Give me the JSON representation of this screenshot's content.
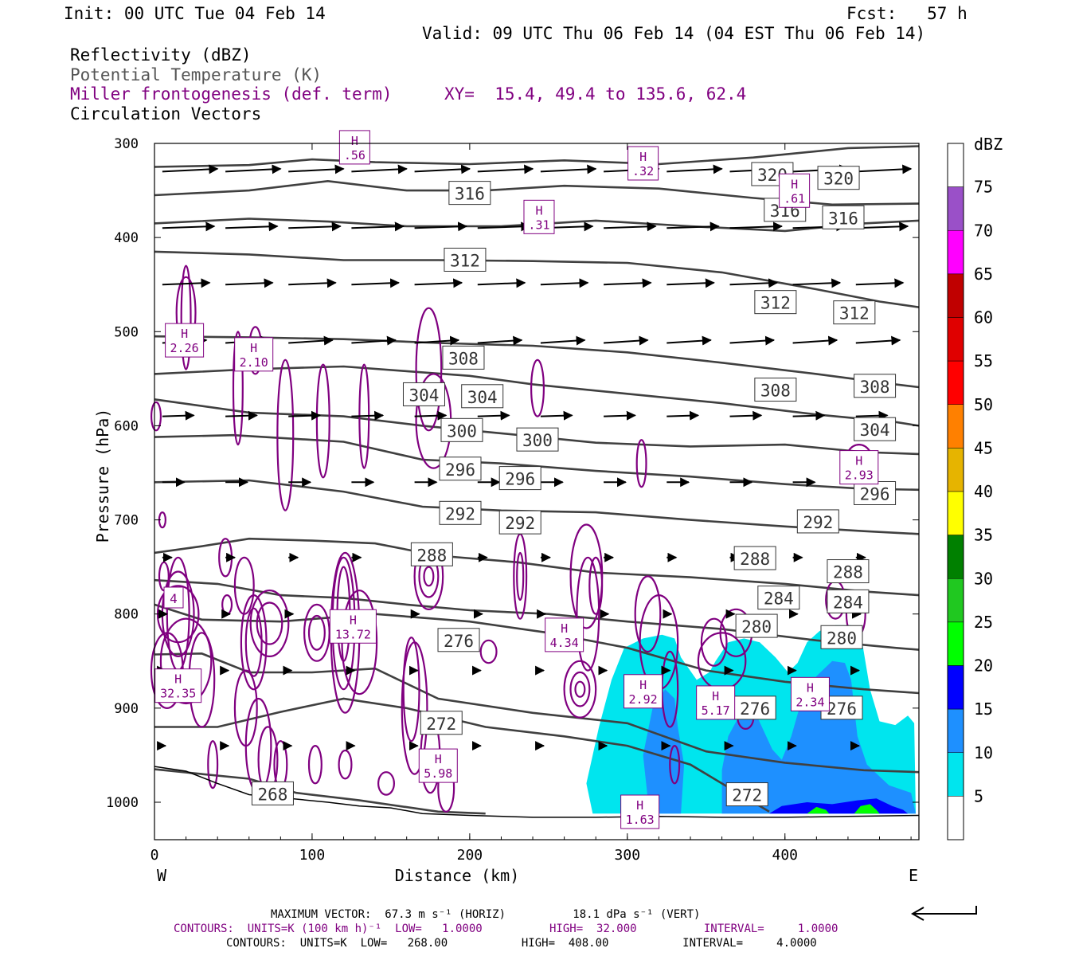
{
  "header": {
    "init": "Init: 00 UTC Tue 04 Feb 14",
    "fcst": "Fcst:   57 h",
    "valid": "Valid: 09 UTC Thu 06 Feb 14 (04 EST Thu 06 Feb 14)",
    "line1": "Reflectivity (dBZ)",
    "line2": "Potential Temperature (K)",
    "line3": "Miller frontogenesis (def. term)",
    "xy": "XY=  15.4, 49.4 to 135.6, 62.4",
    "line4": "Circulation Vectors"
  },
  "footer": {
    "max_vector": "MAXIMUM VECTOR:  67.3 m s⁻¹ (HORIZ)          18.1 dPa s⁻¹ (VERT)",
    "contours_purple": "CONTOURS:  UNITS=K (100 km h)⁻¹  LOW=   1.0000          HIGH=  32.000          INTERVAL=     1.0000",
    "contours_black": "CONTOURS:  UNITS=K  LOW=   268.00           HIGH=  408.00           INTERVAL=     4.0000"
  },
  "colorbar": {
    "unit": "dBZ",
    "levels": [
      "75",
      "70",
      "65",
      "60",
      "55",
      "50",
      "45",
      "40",
      "35",
      "30",
      "25",
      "20",
      "15",
      "10",
      "5"
    ],
    "colors": [
      "#9a50c8",
      "#ff00ff",
      "#c00000",
      "#e00000",
      "#ff0000",
      "#ff8000",
      "#e6b400",
      "#ffff00",
      "#008000",
      "#20c820",
      "#00ff00",
      "#0000ff",
      "#1e90ff",
      "#00e5ee",
      "#ffffff"
    ],
    "top_color": "#ffffff"
  },
  "chart_data": {
    "type": "cross-section",
    "xlabel": "Distance (km)",
    "ylabel": "Pressure (hPa)",
    "xlim": [
      0,
      485
    ],
    "ylim": [
      1040,
      300
    ],
    "x_ticks": [
      "0",
      "100",
      "200",
      "300",
      "400"
    ],
    "y_ticks": [
      "300",
      "400",
      "500",
      "600",
      "700",
      "800",
      "900",
      "1000"
    ],
    "x_left_label": "W",
    "x_right_label": "E",
    "theta_labels": [
      {
        "text": "320",
        "x": 392,
        "p": 333
      },
      {
        "text": "320",
        "x": 434,
        "p": 337
      },
      {
        "text": "316",
        "x": 200,
        "p": 353
      },
      {
        "text": "316",
        "x": 400,
        "p": 371
      },
      {
        "text": "316",
        "x": 437,
        "p": 379
      },
      {
        "text": "312",
        "x": 197,
        "p": 424
      },
      {
        "text": "312",
        "x": 394,
        "p": 469
      },
      {
        "text": "312",
        "x": 444,
        "p": 480
      },
      {
        "text": "308",
        "x": 196,
        "p": 528
      },
      {
        "text": "308",
        "x": 394,
        "p": 562
      },
      {
        "text": "308",
        "x": 457,
        "p": 558
      },
      {
        "text": "304",
        "x": 171,
        "p": 567
      },
      {
        "text": "304",
        "x": 208,
        "p": 569
      },
      {
        "text": "304",
        "x": 457,
        "p": 604
      },
      {
        "text": "300",
        "x": 195,
        "p": 605
      },
      {
        "text": "300",
        "x": 243,
        "p": 615
      },
      {
        "text": "296",
        "x": 194,
        "p": 646
      },
      {
        "text": "296",
        "x": 232,
        "p": 656
      },
      {
        "text": "296",
        "x": 457,
        "p": 672
      },
      {
        "text": "292",
        "x": 194,
        "p": 693
      },
      {
        "text": "292",
        "x": 232,
        "p": 703
      },
      {
        "text": "292",
        "x": 421,
        "p": 702
      },
      {
        "text": "288",
        "x": 176,
        "p": 737
      },
      {
        "text": "288",
        "x": 381,
        "p": 741
      },
      {
        "text": "288",
        "x": 440,
        "p": 755
      },
      {
        "text": "284",
        "x": 396,
        "p": 783
      },
      {
        "text": "284",
        "x": 440,
        "p": 787
      },
      {
        "text": "280",
        "x": 382,
        "p": 813
      },
      {
        "text": "280",
        "x": 436,
        "p": 825
      },
      {
        "text": "276",
        "x": 193,
        "p": 828
      },
      {
        "text": "276",
        "x": 381,
        "p": 900
      },
      {
        "text": "276",
        "x": 436,
        "p": 900
      },
      {
        "text": "272",
        "x": 182,
        "p": 916
      },
      {
        "text": "272",
        "x": 376,
        "p": 992
      },
      {
        "text": "268",
        "x": 75,
        "p": 991
      }
    ],
    "fronto_maxima": [
      {
        "label": "H",
        "value": ".56",
        "x": 127,
        "p": 305
      },
      {
        "label": "H",
        "value": ".32",
        "x": 310,
        "p": 322
      },
      {
        "label": "H",
        "value": ".31",
        "x": 244,
        "p": 379
      },
      {
        "label": "H",
        "value": ".61",
        "x": 406,
        "p": 351
      },
      {
        "label": "H",
        "value": "2.26",
        "x": 19,
        "p": 510
      },
      {
        "label": "H",
        "value": "2.10",
        "x": 63,
        "p": 525
      },
      {
        "label": "H",
        "value": "2.93",
        "x": 447,
        "p": 645
      },
      {
        "label": "H",
        "value": "13.72",
        "x": 126,
        "p": 814
      },
      {
        "label": "H",
        "value": "4.34",
        "x": 260,
        "p": 823
      },
      {
        "label": "H",
        "value": "2.92",
        "x": 310,
        "p": 883
      },
      {
        "label": "H",
        "value": "5.17",
        "x": 356,
        "p": 895
      },
      {
        "label": "H",
        "value": "2.34",
        "x": 416,
        "p": 886
      },
      {
        "label": "H",
        "value": "32.35",
        "x": 15,
        "p": 877
      },
      {
        "label": "H",
        "value": "5.98",
        "x": 180,
        "p": 962
      },
      {
        "label": "H",
        "value": "1.63",
        "x": 308,
        "p": 1011
      }
    ],
    "fronto_side_label": "4"
  }
}
